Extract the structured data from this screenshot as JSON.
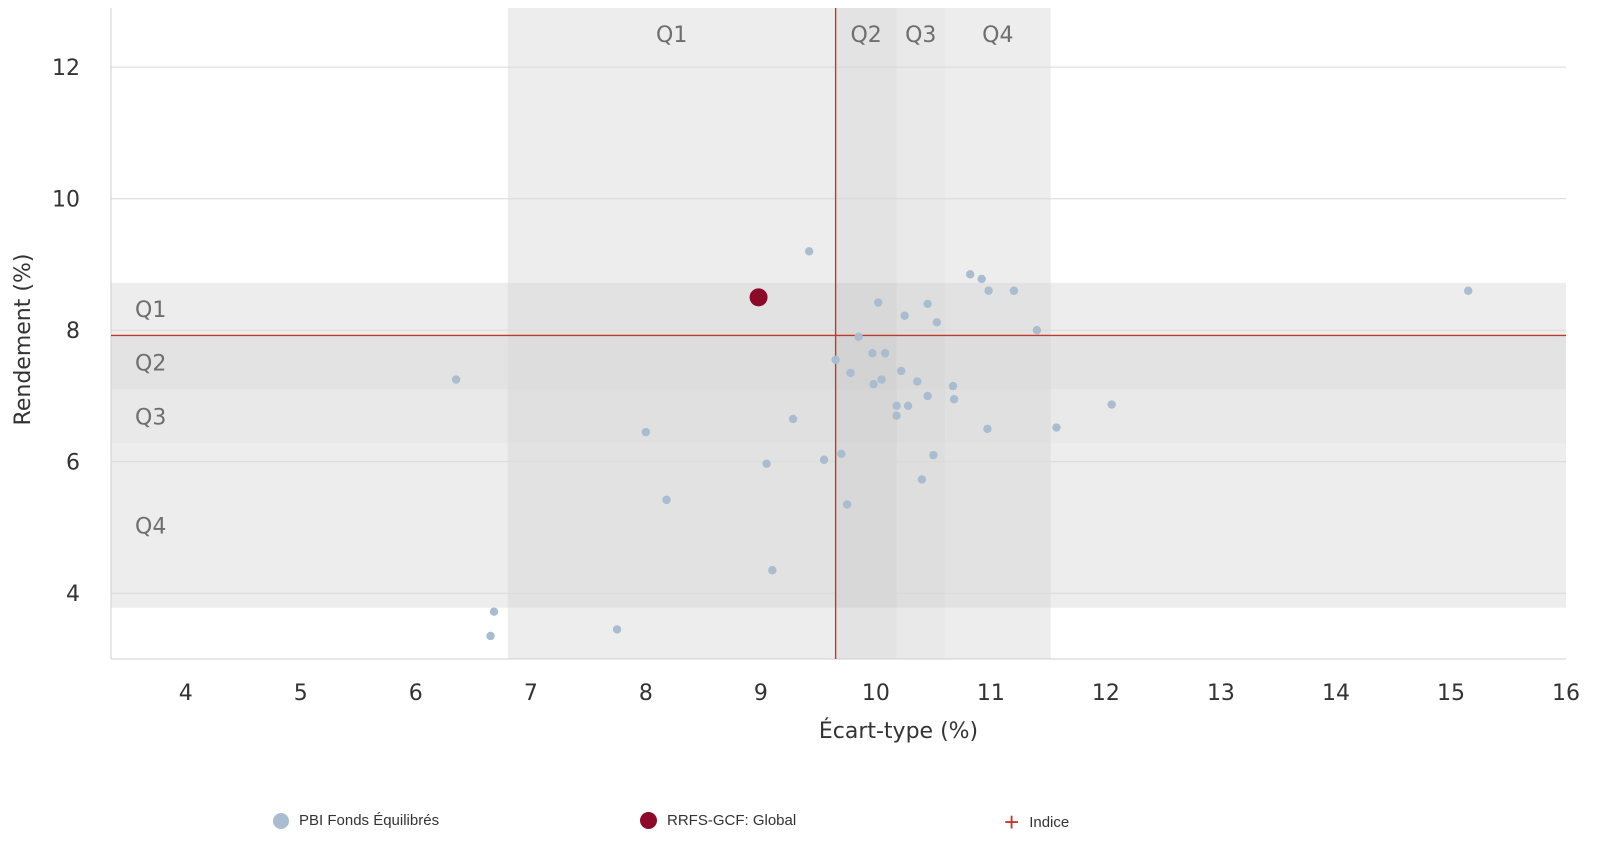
{
  "chart_data": {
    "type": "scatter",
    "xlabel": "Écart-type (%)",
    "ylabel": "Rendement (%)",
    "xlim": [
      3.35,
      16.0
    ],
    "ylim": [
      3.0,
      12.9
    ],
    "x_ticks": [
      "4",
      "5",
      "6",
      "7",
      "8",
      "9",
      "10",
      "11",
      "12",
      "13",
      "14",
      "15",
      "16"
    ],
    "y_ticks": [
      "4",
      "6",
      "8",
      "10",
      "12"
    ],
    "grid": "horizontal",
    "legend_position": "bottom",
    "x_quartiles": [
      {
        "label": "Q1",
        "from": 6.8,
        "to": 9.65
      },
      {
        "label": "Q2",
        "from": 9.65,
        "to": 10.18
      },
      {
        "label": "Q3",
        "from": 10.18,
        "to": 10.6
      },
      {
        "label": "Q4",
        "from": 10.6,
        "to": 11.52
      }
    ],
    "y_quartiles": [
      {
        "label": "Q1",
        "from": 7.92,
        "to": 8.72
      },
      {
        "label": "Q2",
        "from": 7.1,
        "to": 7.92
      },
      {
        "label": "Q3",
        "from": 6.28,
        "to": 7.1
      },
      {
        "label": "Q4",
        "from": 3.78,
        "to": 6.28
      }
    ],
    "series": [
      {
        "name": "PBI Fonds Équilibrés",
        "color": "#a9bcd0",
        "points": [
          [
            6.35,
            7.25
          ],
          [
            6.65,
            3.35
          ],
          [
            6.68,
            3.72
          ],
          [
            7.75,
            3.45
          ],
          [
            8.0,
            6.45
          ],
          [
            8.18,
            5.42
          ],
          [
            9.05,
            5.97
          ],
          [
            9.1,
            4.35
          ],
          [
            9.28,
            6.65
          ],
          [
            9.42,
            9.2
          ],
          [
            9.55,
            6.03
          ],
          [
            9.65,
            7.55
          ],
          [
            9.7,
            6.12
          ],
          [
            9.75,
            5.35
          ],
          [
            9.78,
            7.35
          ],
          [
            9.85,
            7.9
          ],
          [
            9.97,
            7.65
          ],
          [
            9.98,
            7.18
          ],
          [
            10.02,
            8.42
          ],
          [
            10.05,
            7.25
          ],
          [
            10.08,
            7.65
          ],
          [
            10.18,
            6.85
          ],
          [
            10.18,
            6.7
          ],
          [
            10.22,
            7.38
          ],
          [
            10.25,
            8.22
          ],
          [
            10.28,
            6.85
          ],
          [
            10.36,
            7.22
          ],
          [
            10.4,
            5.73
          ],
          [
            10.45,
            7.0
          ],
          [
            10.45,
            8.4
          ],
          [
            10.5,
            6.1
          ],
          [
            10.53,
            8.12
          ],
          [
            10.67,
            7.15
          ],
          [
            10.68,
            6.95
          ],
          [
            10.82,
            8.85
          ],
          [
            10.92,
            8.78
          ],
          [
            10.97,
            6.5
          ],
          [
            10.98,
            8.6
          ],
          [
            11.2,
            8.6
          ],
          [
            11.4,
            8.0
          ],
          [
            11.57,
            6.52
          ],
          [
            12.05,
            6.87
          ],
          [
            15.15,
            8.6
          ]
        ]
      },
      {
        "name": "RRFS-GCF: Global",
        "color": "#8b0a2a",
        "points": [
          [
            8.98,
            8.5
          ]
        ]
      },
      {
        "name": "Indice",
        "color": "#c0392b",
        "points": [
          [
            9.65,
            7.92
          ]
        ]
      }
    ]
  },
  "legend": {
    "items": [
      {
        "label": "PBI Fonds Équilibrés",
        "color": "#a9bcd0"
      },
      {
        "label": "RRFS-GCF: Global",
        "color": "#8b0a2a"
      },
      {
        "label": "Indice",
        "color": "#c0392b"
      }
    ]
  }
}
